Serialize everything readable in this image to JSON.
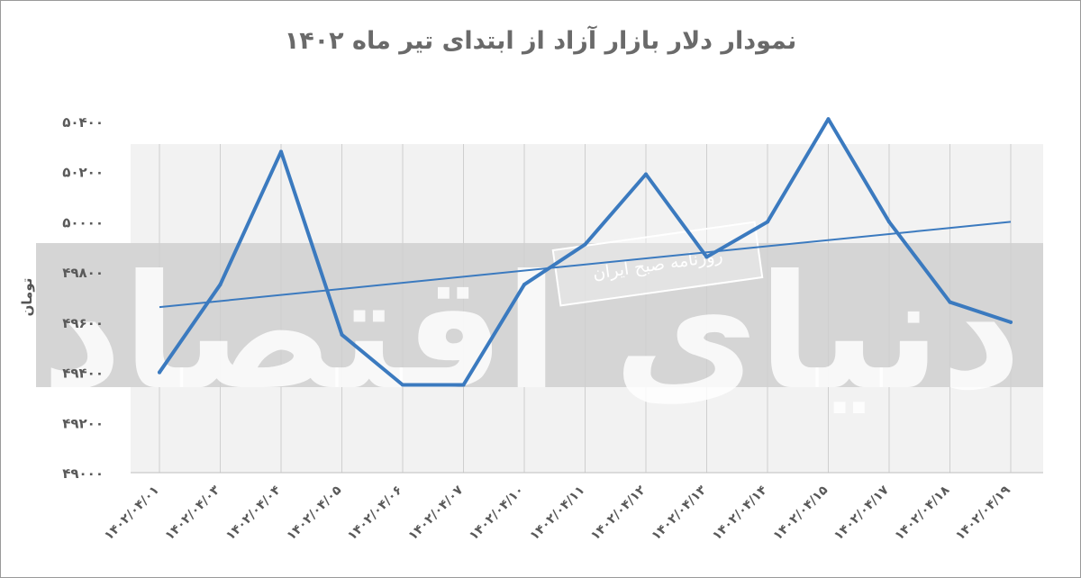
{
  "page": {
    "title": "نمودار دلار بازار آزاد از ابتدای تیر ماه ۱۴۰۲",
    "watermark_logo": "دنیای اقتصاد",
    "watermark_caption": "روزنامه صبح ایران"
  },
  "chart_data": {
    "type": "line",
    "title": "نمودار دلار بازار آزاد از ابتدای تیر ماه ۱۴۰۲",
    "xlabel": "",
    "ylabel": "تومان",
    "ylim": [
      49000,
      50400
    ],
    "y_ticks": [
      49000,
      49200,
      49400,
      49600,
      49800,
      50000,
      50200,
      50400
    ],
    "y_tick_labels": [
      "۴۹۰۰۰",
      "۴۹۲۰۰",
      "۴۹۴۰۰",
      "۴۹۶۰۰",
      "۴۹۸۰۰",
      "۵۰۰۰۰",
      "۵۰۲۰۰",
      "۵۰۴۰۰"
    ],
    "categories": [
      "۱۴۰۲/۰۴/۰۱",
      "۱۴۰۲/۰۴/۰۳",
      "۱۴۰۲/۰۴/۰۴",
      "۱۴۰۲/۰۴/۰۵",
      "۱۴۰۲/۰۴/۰۶",
      "۱۴۰۲/۰۴/۰۷",
      "۱۴۰۲/۰۴/۱۰",
      "۱۴۰۲/۰۴/۱۱",
      "۱۴۰۲/۰۴/۱۲",
      "۱۴۰۲/۰۴/۱۳",
      "۱۴۰۲/۰۴/۱۴",
      "۱۴۰۲/۰۴/۱۵",
      "۱۴۰۲/۰۴/۱۷",
      "۱۴۰۲/۰۴/۱۸",
      "۱۴۰۲/۰۴/۱۹"
    ],
    "series": [
      {
        "values": [
          49400,
          49750,
          50280,
          49550,
          49350,
          49350,
          49750,
          49910,
          50190,
          49860,
          50000,
          50410,
          50000,
          49680,
          49600
        ]
      }
    ],
    "trendline": [
      49660,
      50000
    ],
    "grid": "vertical",
    "legend": "none",
    "colors": {
      "line": "#3b7abf",
      "trendline": "#3b7abf",
      "grid": "#cfcfcf",
      "band": "#d5d5d5",
      "plot_background": "#f2f2f2"
    }
  }
}
